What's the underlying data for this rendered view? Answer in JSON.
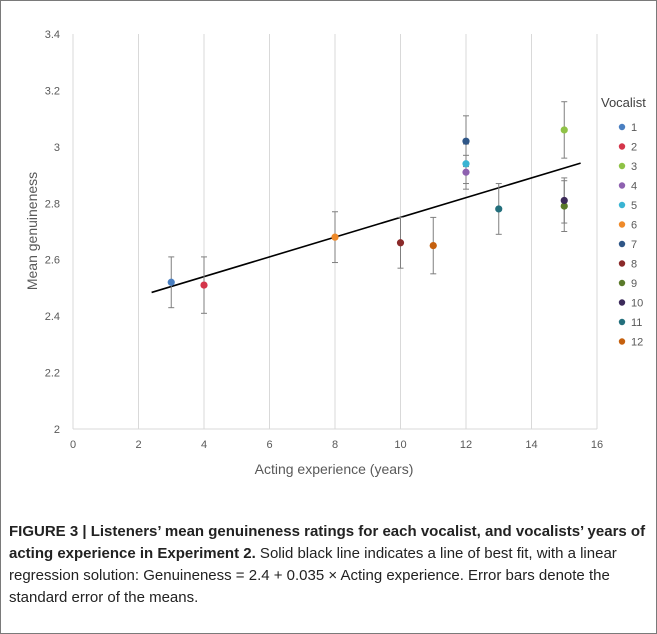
{
  "chart_data": {
    "type": "scatter",
    "xlabel": "Acting experience (years)",
    "ylabel": "Mean genuineness",
    "xlim": [
      0,
      16
    ],
    "ylim": [
      2,
      3.4
    ],
    "xticks": [
      0,
      2,
      4,
      6,
      8,
      10,
      12,
      14,
      16
    ],
    "yticks": [
      2,
      2.2,
      2.4,
      2.6,
      2.8,
      3,
      3.2,
      3.4
    ],
    "xtick_labels": [
      "0",
      "2",
      "4",
      "6",
      "8",
      "10",
      "12",
      "14",
      "16"
    ],
    "ytick_labels": [
      "2",
      "2.2",
      "2.4",
      "2.6",
      "2.8",
      "3",
      "3.2",
      "3.4"
    ],
    "grid": "vertical",
    "legend": {
      "title": "Vocalist",
      "placement": "right"
    },
    "fit_line": {
      "intercept": 2.4,
      "slope": 0.035,
      "x_range": [
        2.4,
        15.5
      ],
      "color": "#000000"
    },
    "series": [
      {
        "name": "1",
        "x": 3,
        "y": 2.52,
        "err": 0.09,
        "color": "#4a7fc1"
      },
      {
        "name": "2",
        "x": 4,
        "y": 2.51,
        "err": 0.1,
        "color": "#d4354a"
      },
      {
        "name": "3",
        "x": 15,
        "y": 3.06,
        "err": 0.1,
        "color": "#8fc246"
      },
      {
        "name": "4",
        "x": 12,
        "y": 2.91,
        "err": 0.06,
        "color": "#8e61b0"
      },
      {
        "name": "5",
        "x": 12,
        "y": 2.94,
        "err": 0.07,
        "color": "#3ab4d3"
      },
      {
        "name": "6",
        "x": 8,
        "y": 2.68,
        "err": 0.09,
        "color": "#ef8a2a"
      },
      {
        "name": "7",
        "x": 12,
        "y": 3.02,
        "err": 0.09,
        "color": "#2f5687"
      },
      {
        "name": "8",
        "x": 10,
        "y": 2.66,
        "err": 0.09,
        "color": "#8a2a2a"
      },
      {
        "name": "9",
        "x": 15,
        "y": 2.79,
        "err": 0.09,
        "color": "#5a7a2a"
      },
      {
        "name": "10",
        "x": 15,
        "y": 2.81,
        "err": 0.08,
        "color": "#3c2a5a"
      },
      {
        "name": "11",
        "x": 13,
        "y": 2.78,
        "err": 0.09,
        "color": "#236f7c"
      },
      {
        "name": "12",
        "x": 11,
        "y": 2.65,
        "err": 0.1,
        "color": "#c5600e"
      }
    ]
  },
  "caption": {
    "bold": "FIGURE 3 | Listeners’ mean genuineness ratings for each vocalist, and vocalists’ years of acting experience in Experiment 2.",
    "text": " Solid black line indicates a line of best fit, with a linear regression solution: Genuineness = 2.4 + 0.035 × Acting experience. Error bars denote the standard error of the means."
  }
}
